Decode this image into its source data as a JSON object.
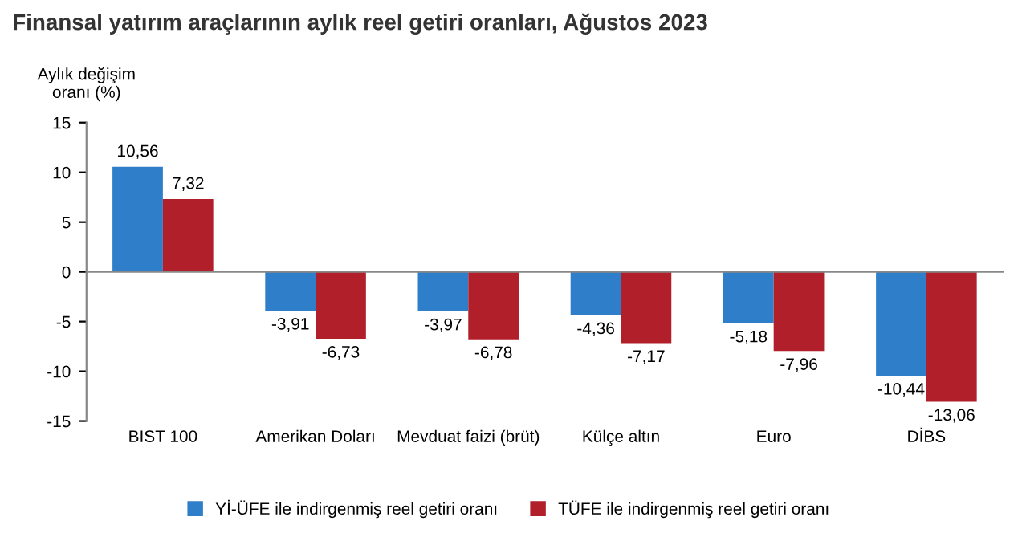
{
  "chart_data": {
    "type": "bar",
    "title": "Finansal yatırım araçlarının aylık reel getiri oranları, Ağustos 2023",
    "ylabel": "Aylık değişim\noranı (%)",
    "categories": [
      "BIST 100",
      "Amerikan Doları",
      "Mevduat faizi (brüt)",
      "Külçe altın",
      "Euro",
      "DİBS"
    ],
    "series": [
      {
        "name": "Yİ-ÜFE ile indirgenmiş reel getiri oranı",
        "color": "#2e7ec9",
        "values": [
          10.56,
          -3.91,
          -3.97,
          -4.36,
          -5.18,
          -10.44
        ],
        "value_labels": [
          "10,56",
          "-3,91",
          "-3,97",
          "-4,36",
          "-5,18",
          "-10,44"
        ]
      },
      {
        "name": "TÜFE ile indirgenmiş reel getiri oranı",
        "color": "#b01f2a",
        "values": [
          7.32,
          -6.73,
          -6.78,
          -7.17,
          -7.96,
          -13.06
        ],
        "value_labels": [
          "7,32",
          "-6,73",
          "-6,78",
          "-7,17",
          "-7,96",
          "-13,06"
        ]
      }
    ],
    "ylim": [
      -15,
      15
    ],
    "yticks": [
      -15,
      -10,
      -5,
      0,
      5,
      10,
      15
    ],
    "legend": "bottom"
  }
}
